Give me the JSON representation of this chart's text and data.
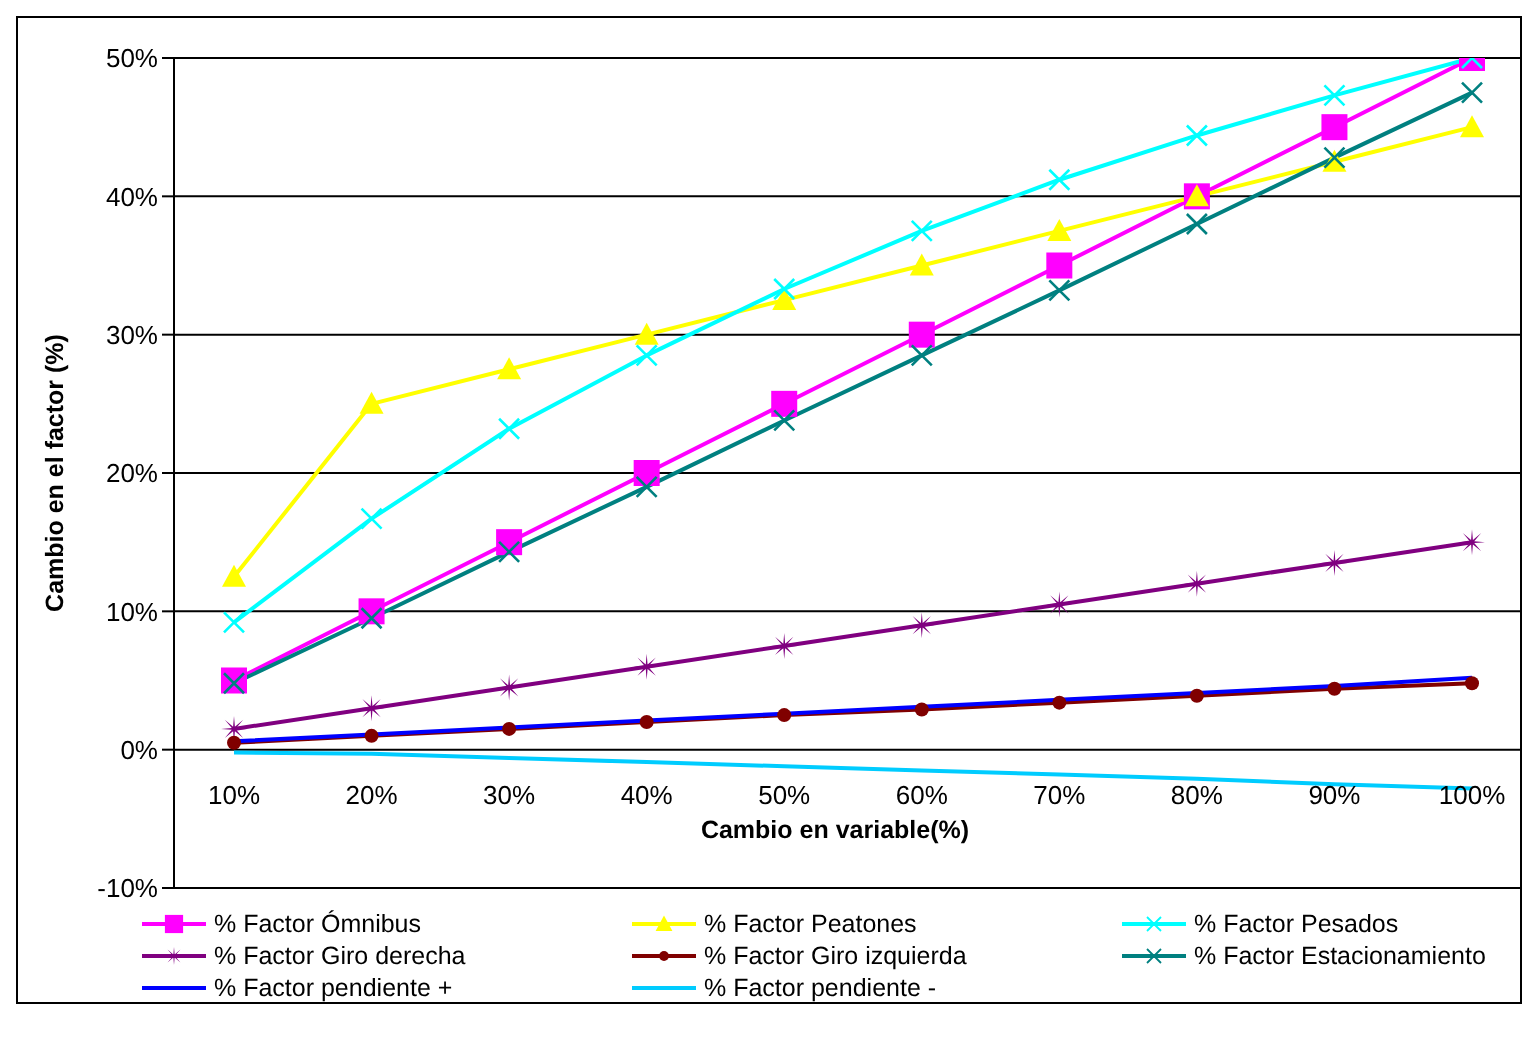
{
  "chart_data": {
    "type": "line",
    "xlabel": "Cambio en variable(%)",
    "ylabel": "Cambio en el factor (%)",
    "categories": [
      "10%",
      "20%",
      "30%",
      "40%",
      "50%",
      "60%",
      "70%",
      "80%",
      "90%",
      "100%"
    ],
    "ylim": [
      -10,
      50
    ],
    "yticks": [
      {
        "value": -10,
        "label": "-10%"
      },
      {
        "value": 0,
        "label": "0%"
      },
      {
        "value": 10,
        "label": "10%"
      },
      {
        "value": 20,
        "label": "20%"
      },
      {
        "value": 30,
        "label": "30%"
      },
      {
        "value": 40,
        "label": "40%"
      },
      {
        "value": 50,
        "label": "50%"
      }
    ],
    "grid": "y",
    "legend": "bottom",
    "series": [
      {
        "name": "% Factor Ómnibus",
        "color": "#ff00ff",
        "marker": "square",
        "values": [
          5,
          10,
          15,
          20,
          25,
          30,
          35,
          40,
          45,
          50
        ]
      },
      {
        "name": "% Factor Peatones",
        "color": "#ffff00",
        "marker": "triangle",
        "values": [
          12.5,
          25,
          27.5,
          30,
          32.5,
          35,
          37.5,
          40,
          42.5,
          45
        ]
      },
      {
        "name": "% Factor Pesados",
        "color": "#00ffff",
        "marker": "cross",
        "values": [
          9.2,
          16.7,
          23.2,
          28.5,
          33.3,
          37.5,
          41.2,
          44.4,
          47.3,
          50
        ]
      },
      {
        "name": "% Factor Giro derecha",
        "color": "#800080",
        "marker": "star",
        "values": [
          1.5,
          3,
          4.5,
          6,
          7.5,
          9,
          10.5,
          12,
          13.5,
          15
        ]
      },
      {
        "name": "% Factor Giro izquierda",
        "color": "#800000",
        "marker": "circle",
        "values": [
          0.5,
          1,
          1.5,
          2,
          2.5,
          2.9,
          3.4,
          3.9,
          4.4,
          4.8
        ]
      },
      {
        "name": "% Factor Estacionamiento",
        "color": "#008080",
        "marker": "cross",
        "values": [
          4.8,
          9.5,
          14.3,
          19,
          23.8,
          28.5,
          33.2,
          38,
          42.8,
          47.5
        ]
      },
      {
        "name": "% Factor pendiente +",
        "color": "#0000ff",
        "marker": "none",
        "values": [
          0.6,
          1.1,
          1.6,
          2.1,
          2.6,
          3.1,
          3.6,
          4.1,
          4.6,
          5.2
        ]
      },
      {
        "name": "% Factor pendiente -",
        "color": "#00ccff",
        "marker": "none",
        "values": [
          -0.2,
          -0.3,
          -0.6,
          -0.9,
          -1.2,
          -1.5,
          -1.8,
          -2.1,
          -2.5,
          -2.8
        ]
      }
    ]
  }
}
